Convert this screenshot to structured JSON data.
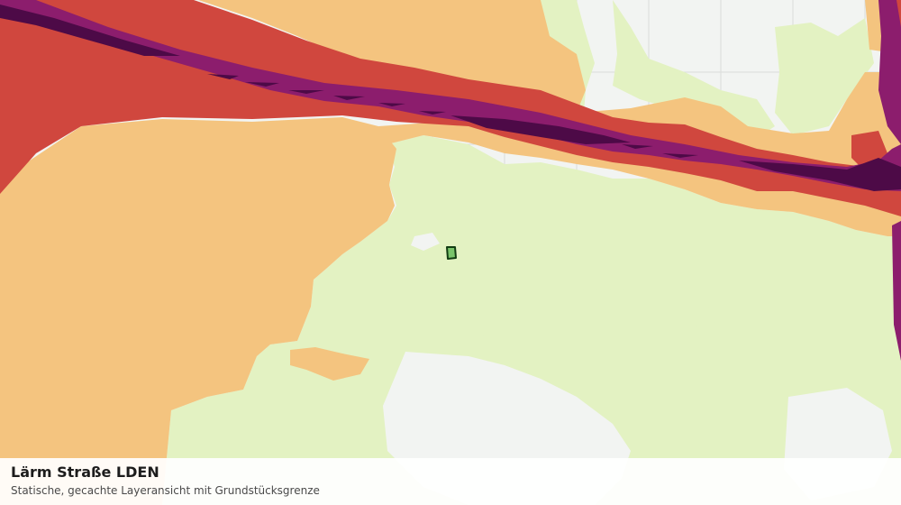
{
  "map": {
    "layer": "Lärm Straße LDEN",
    "colors": {
      "background": "#f2f4f2",
      "grid": "#dadcda",
      "band_1": "#e3f2c2",
      "band_2": "#f4c47f",
      "band_3": "#d0473e",
      "band_4": "#8c1d6d",
      "band_5": "#4d0a47",
      "parcel_fill": "#79c46a",
      "parcel_stroke": "#123d12"
    }
  },
  "caption": {
    "title": "Lärm Straße LDEN",
    "subtitle": "Statische, gecachte Layeransicht mit Grundstücksgrenze"
  }
}
